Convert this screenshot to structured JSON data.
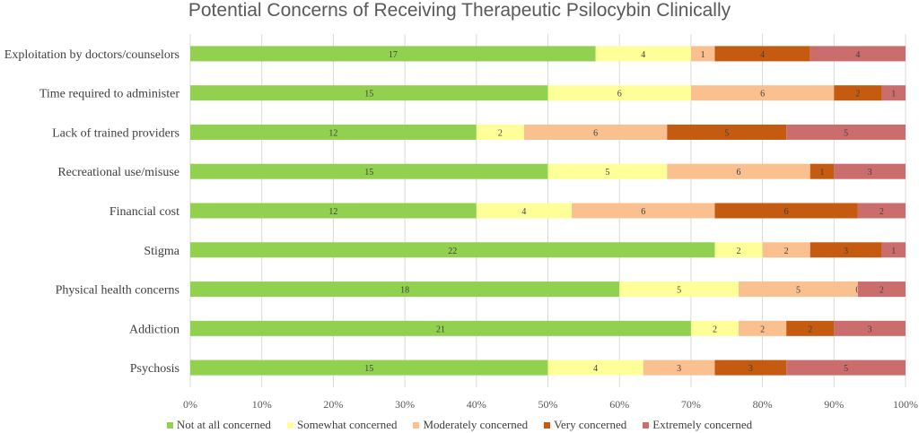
{
  "chart_data": {
    "type": "bar",
    "orientation": "horizontal",
    "stacked": "percent",
    "title": "Potential Concerns of Receiving Therapeutic Psilocybin Clinically",
    "categories": [
      "Exploitation by doctors/counselors",
      "Time required to administer",
      "Lack of trained providers",
      "Recreational use/misuse",
      "Financial cost",
      "Stigma",
      "Physical health concerns",
      "Addiction",
      "Psychosis"
    ],
    "series": [
      {
        "name": "Not at all concerned",
        "color": "#92d050",
        "values": [
          17,
          15,
          12,
          15,
          12,
          22,
          18,
          21,
          15
        ]
      },
      {
        "name": "Somewhat concerned",
        "color": "#ffff99",
        "values": [
          4,
          6,
          2,
          5,
          4,
          2,
          5,
          2,
          4
        ]
      },
      {
        "name": "Moderately concerned",
        "color": "#fac090",
        "values": [
          1,
          6,
          6,
          6,
          6,
          2,
          5,
          2,
          3
        ]
      },
      {
        "name": "Very concerned",
        "color": "#c55a11",
        "values": [
          4,
          2,
          5,
          1,
          6,
          3,
          0,
          2,
          3
        ]
      },
      {
        "name": "Extremely concerned",
        "color": "#cc6d6d",
        "values": [
          4,
          1,
          5,
          3,
          2,
          1,
          2,
          3,
          5
        ]
      }
    ],
    "xticks": [
      "0%",
      "10%",
      "20%",
      "30%",
      "40%",
      "50%",
      "60%",
      "70%",
      "80%",
      "90%",
      "100%"
    ],
    "xlim": [
      0,
      100
    ],
    "grid": true,
    "legend_position": "bottom"
  }
}
